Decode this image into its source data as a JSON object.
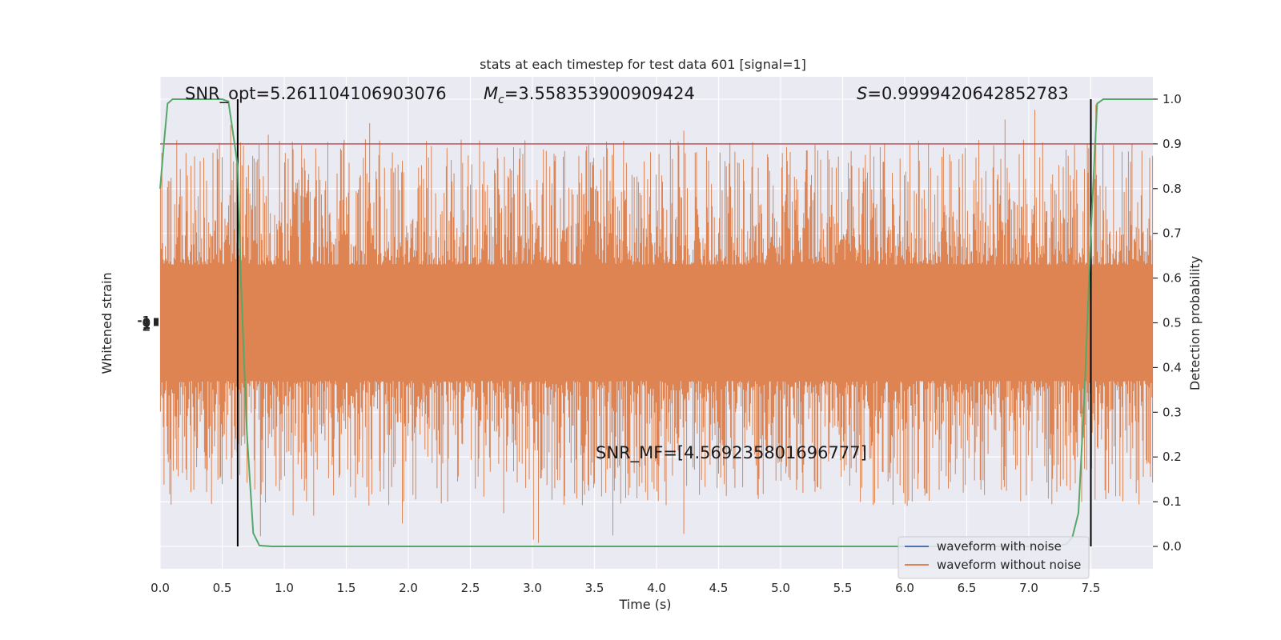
{
  "chart_data": {
    "type": "line",
    "title": "stats at each timestep for test data 601 [signal=1]",
    "xlabel": "Time (s)",
    "ylabel_left": "Whitened strain",
    "ylabel_right": "Detection probability",
    "xlim": [
      0.0,
      8.0
    ],
    "ylim_right": [
      -0.05,
      1.05
    ],
    "xticks": [
      "0.0",
      "0.5",
      "1.0",
      "1.5",
      "2.0",
      "2.5",
      "3.0",
      "3.5",
      "4.0",
      "4.5",
      "5.0",
      "5.5",
      "6.0",
      "6.5",
      "7.0",
      "7.5"
    ],
    "yticks_right": [
      "0.0",
      "0.1",
      "0.2",
      "0.3",
      "0.4",
      "0.5",
      "0.6",
      "0.7",
      "0.8",
      "0.9",
      "1.0"
    ],
    "grid": true,
    "legend_position": "lower-right",
    "annotations": {
      "snr_opt": "SNR_opt=5.261104106903076",
      "mc_symbol": "M",
      "mc_sub": "c",
      "mc_value": "=3.558353900909424",
      "s_symbol": "S",
      "s_value": "=0.9999420642852783",
      "snr_mf": "SNR_MF=[4.569235801696777]"
    },
    "threshold": {
      "value": 0.9,
      "color": "#c44e52"
    },
    "vertical_markers": [
      0.625,
      7.5
    ],
    "series": [
      {
        "name": "waveform with noise",
        "color": "#4c72b0",
        "role": "legend-only"
      },
      {
        "name": "waveform without noise",
        "color": "#dd8452",
        "role": "strain"
      }
    ],
    "detection_probability": {
      "color": "#55a868",
      "t": [
        0.0,
        0.03,
        0.06,
        0.1,
        0.2,
        0.3,
        0.4,
        0.5,
        0.55,
        0.6,
        0.625,
        0.65,
        0.7,
        0.75,
        0.8,
        0.9,
        1.0,
        2.0,
        3.0,
        4.0,
        5.0,
        6.0,
        6.5,
        7.0,
        7.2,
        7.3,
        7.35,
        7.4,
        7.45,
        7.5,
        7.55,
        7.6,
        7.7,
        7.8,
        8.0
      ],
      "p": [
        0.8,
        0.9,
        0.99,
        1.0,
        1.0,
        1.0,
        1.0,
        1.0,
        0.995,
        0.9,
        0.85,
        0.6,
        0.25,
        0.03,
        0.002,
        0.0,
        0.0,
        0.0,
        0.0,
        0.0,
        0.0,
        0.0,
        0.0,
        0.0,
        0.0,
        0.005,
        0.02,
        0.075,
        0.35,
        0.7,
        0.99,
        1.0,
        1.0,
        1.0,
        1.0
      ]
    },
    "strain_envelope": {
      "center_prob": 0.5,
      "core_half_width": 0.13,
      "max_excursion_up": 0.5,
      "max_excursion_down": 0.5
    },
    "left_axis_ticks": [
      "-1",
      "0",
      "1",
      "2"
    ]
  }
}
